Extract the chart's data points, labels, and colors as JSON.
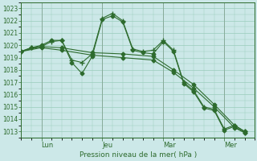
{
  "background_color": "#cce8e8",
  "plot_bg_color": "#cce8e8",
  "grid_color": "#99ccbb",
  "line_color": "#2d6b2d",
  "xlabel_text": "Pression niveau de la mer( hPa )",
  "x_tick_labels": [
    "Lun",
    "Jeu",
    "Mar",
    "Mer"
  ],
  "x_tick_positions": [
    1,
    4,
    7,
    10
  ],
  "ylim": [
    1012.5,
    1023.5
  ],
  "xlim": [
    0,
    11.5
  ],
  "yticks": [
    1013,
    1014,
    1015,
    1016,
    1017,
    1018,
    1019,
    1020,
    1021,
    1022,
    1023
  ],
  "series": [
    {
      "x": [
        0.0,
        0.5,
        1.0,
        1.5,
        2.0,
        2.5,
        3.0,
        3.5,
        4.0,
        4.5,
        5.0,
        5.5,
        6.0,
        6.5,
        7.0,
        7.5,
        8.0,
        8.5,
        9.0,
        9.5,
        10.0,
        10.5,
        11.0
      ],
      "y": [
        1019.5,
        1019.8,
        1019.9,
        1020.3,
        1020.4,
        1018.8,
        1018.6,
        1019.3,
        1022.2,
        1022.6,
        1022.0,
        1019.7,
        1019.5,
        1019.6,
        1020.4,
        1019.6,
        1017.0,
        1016.3,
        1015.0,
        1014.8,
        1013.2,
        1013.5,
        1013.0
      ],
      "marker": "+",
      "ms": 4
    },
    {
      "x": [
        0.0,
        0.5,
        1.0,
        1.5,
        2.0,
        2.5,
        3.0,
        3.5,
        4.0,
        4.5,
        5.0,
        5.5,
        6.0,
        6.5,
        7.0,
        7.5,
        8.0,
        8.5,
        9.0,
        9.5,
        10.0,
        10.5,
        11.0
      ],
      "y": [
        1019.5,
        1019.8,
        1020.0,
        1020.4,
        1020.4,
        1018.6,
        1017.7,
        1019.1,
        1022.1,
        1022.4,
        1021.9,
        1019.6,
        1019.4,
        1019.3,
        1020.3,
        1019.5,
        1016.9,
        1016.2,
        1014.9,
        1014.7,
        1013.1,
        1013.4,
        1012.9
      ],
      "marker": "D",
      "ms": 2.5
    },
    {
      "x": [
        0.0,
        1.0,
        2.0,
        3.5,
        5.0,
        6.5,
        7.5,
        8.5,
        9.5,
        10.5,
        11.0
      ],
      "y": [
        1019.5,
        1019.9,
        1019.8,
        1019.4,
        1019.3,
        1019.1,
        1018.0,
        1016.8,
        1015.2,
        1013.5,
        1013.0
      ],
      "marker": "D",
      "ms": 2.5
    },
    {
      "x": [
        0.0,
        1.0,
        2.0,
        3.5,
        5.0,
        6.5,
        7.5,
        8.5,
        9.5,
        10.5,
        11.0
      ],
      "y": [
        1019.5,
        1019.8,
        1019.6,
        1019.2,
        1019.0,
        1018.8,
        1017.8,
        1016.5,
        1015.0,
        1013.3,
        1012.9
      ],
      "marker": "D",
      "ms": 2.5
    }
  ]
}
